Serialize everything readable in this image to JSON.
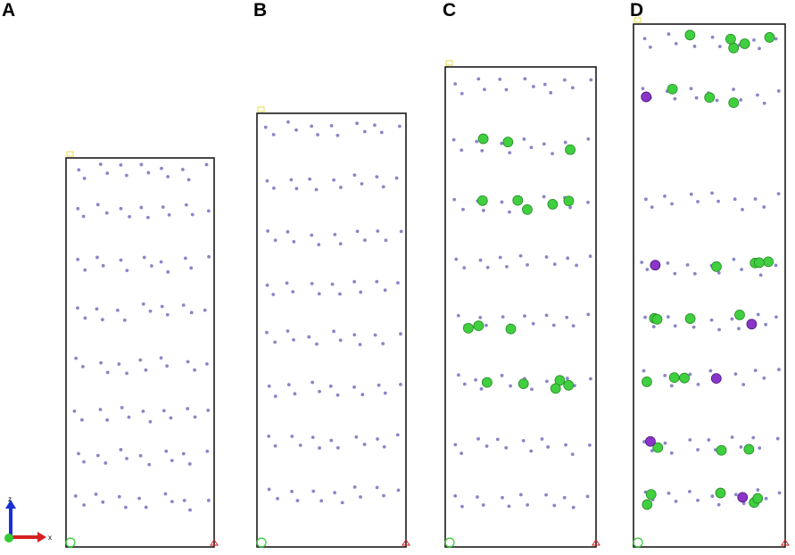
{
  "panels": [
    {
      "label": "A",
      "sodium_layers": [],
      "magnesium_layers": []
    },
    {
      "label": "B",
      "sodium_layers": [],
      "magnesium_layers": []
    },
    {
      "label": "C",
      "sodium_layers": [
        1,
        2,
        4,
        5
      ],
      "magnesium_layers": []
    },
    {
      "label": "D",
      "sodium_layers": [
        0,
        1,
        3,
        4,
        5,
        6,
        7,
        8
      ],
      "magnesium_layers": [
        1,
        3,
        4,
        5,
        6,
        7
      ]
    }
  ],
  "axes_glyph": {
    "z_label": "z",
    "x_label": "x"
  },
  "colors": {
    "frame": "#1a1a1a",
    "lattice_atom": "#8a86c8",
    "sodium_atom": "#3fcf3f",
    "magnesium_atom": "#8a35c8",
    "axis_z": "#1a2fd6",
    "axis_x": "#d62020",
    "axis_y": "#33cc33",
    "corner_mark": "#e8d84a"
  }
}
